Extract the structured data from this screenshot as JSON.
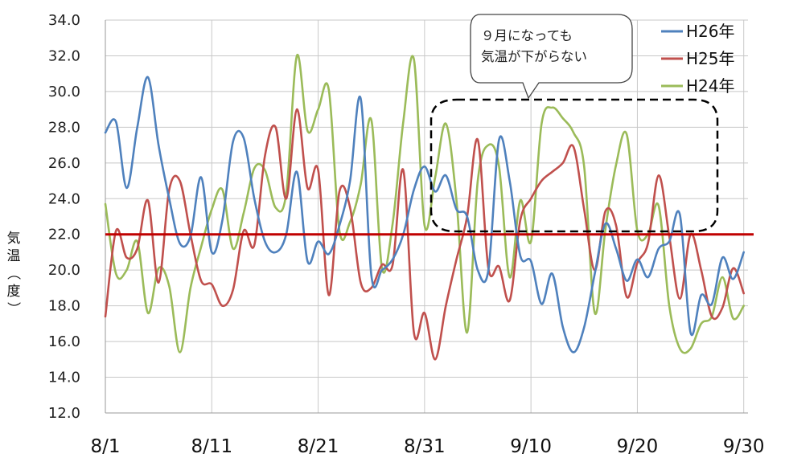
{
  "chart_data": {
    "type": "line",
    "title": "",
    "xlabel": "",
    "ylabel_chars": [
      "気",
      "温",
      "（",
      "度",
      "）"
    ],
    "ylim": [
      12.0,
      34.0
    ],
    "y_ticks": [
      "12.0",
      "14.0",
      "16.0",
      "18.0",
      "20.0",
      "22.0",
      "24.0",
      "26.0",
      "28.0",
      "30.0",
      "32.0",
      "34.0"
    ],
    "x_tick_labels": [
      "8/1",
      "8/11",
      "8/21",
      "8/31",
      "9/10",
      "9/20",
      "9/30"
    ],
    "x_tick_days": [
      0,
      10,
      20,
      30,
      40,
      50,
      60
    ],
    "grid": true,
    "legend_position": "top-right",
    "reference_line": {
      "value": 22.0,
      "color": "#c00000"
    },
    "annotation": {
      "lines": [
        "９月になっても",
        "気温が下がらない"
      ]
    },
    "series": [
      {
        "name": "H26年",
        "color": "#4f81bd",
        "values": [
          27.7,
          28.3,
          24.6,
          28.0,
          30.8,
          27.0,
          24.0,
          21.5,
          21.9,
          25.2,
          21.0,
          22.8,
          27.2,
          27.4,
          24.0,
          21.6,
          21.0,
          22.0,
          25.5,
          20.5,
          21.6,
          20.9,
          22.5,
          25.0,
          29.6,
          19.7,
          20.0,
          20.6,
          22.0,
          24.5,
          25.8,
          24.4,
          25.3,
          23.4,
          23.0,
          20.0,
          20.0,
          27.3,
          25.0,
          20.8,
          20.5,
          18.1,
          19.8,
          16.8,
          15.4,
          16.8,
          19.8,
          22.6,
          21.2,
          19.4,
          20.6,
          19.6,
          21.2,
          21.6,
          23.1,
          16.5,
          18.6,
          18.1,
          20.7,
          19.5,
          21.0
        ]
      },
      {
        "name": "H25年",
        "color": "#c0504d",
        "values": [
          17.4,
          22.2,
          20.7,
          21.2,
          23.9,
          19.3,
          24.5,
          25.0,
          22.0,
          19.4,
          19.2,
          18.0,
          18.9,
          22.2,
          21.4,
          26.4,
          28.0,
          24.0,
          29.0,
          24.6,
          25.6,
          18.6,
          24.4,
          23.5,
          19.3,
          19.0,
          20.3,
          20.3,
          25.6,
          16.5,
          17.6,
          15.0,
          18.0,
          20.6,
          23.0,
          27.3,
          20.1,
          20.2,
          18.3,
          22.8,
          24.0,
          25.0,
          25.5,
          26.0,
          26.9,
          23.4,
          20.0,
          23.3,
          22.5,
          18.5,
          20.4,
          21.5,
          25.3,
          21.9,
          18.4,
          22.0,
          20.0,
          17.4,
          17.9,
          20.1,
          18.7
        ]
      },
      {
        "name": "H24年",
        "color": "#9bbb59",
        "values": [
          23.7,
          19.8,
          20.0,
          21.6,
          17.6,
          20.1,
          19.1,
          15.4,
          19.0,
          21.3,
          23.4,
          24.5,
          21.2,
          23.2,
          25.7,
          25.6,
          23.5,
          24.3,
          32.0,
          27.8,
          29.0,
          30.1,
          22.2,
          22.7,
          24.8,
          28.4,
          20.1,
          22.6,
          28.3,
          31.8,
          22.5,
          25.2,
          28.2,
          23.9,
          16.5,
          25.0,
          27.0,
          25.8,
          19.6,
          23.9,
          21.6,
          28.2,
          29.1,
          28.5,
          27.7,
          25.8,
          17.6,
          22.3,
          25.9,
          27.6,
          22.2,
          22.0,
          23.6,
          18.0,
          15.6,
          15.6,
          17.0,
          17.4,
          19.6,
          17.3,
          18.0
        ]
      }
    ]
  }
}
